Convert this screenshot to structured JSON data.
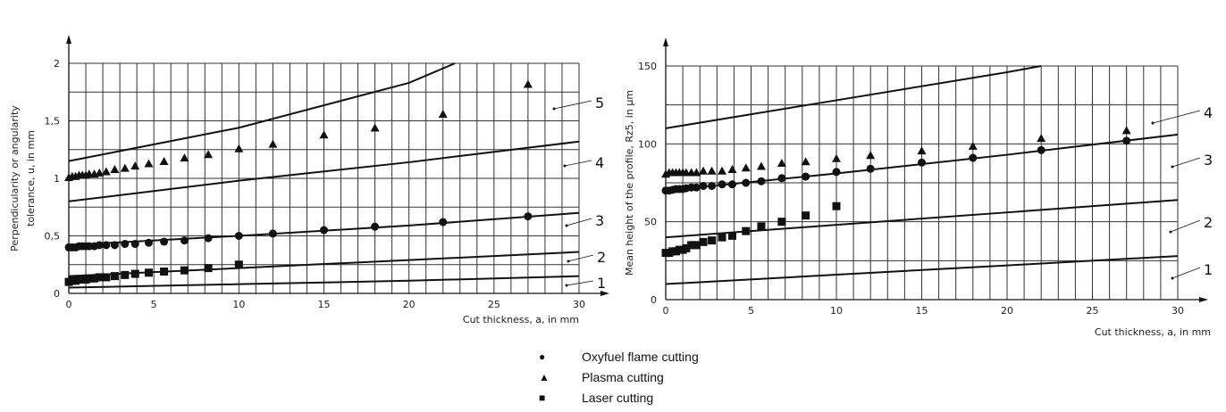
{
  "chart_data": [
    {
      "type": "scatter",
      "title": "",
      "xlabel": "Cut thickness, a, in mm",
      "ylabel": [
        "Perpendicularity or angularity",
        "tolerance, u, in mm"
      ],
      "xlim": [
        0,
        30
      ],
      "ylim": [
        0,
        2
      ],
      "xticks": [
        "0",
        "5",
        "10",
        "15",
        "20",
        "25",
        "30"
      ],
      "yticks": [
        "0",
        "0,5",
        "1",
        "1,5",
        "2"
      ],
      "grid": true,
      "curves": [
        {
          "label": "1",
          "points": [
            [
              0,
              0.05
            ],
            [
              10,
              0.08
            ],
            [
              20,
              0.11
            ],
            [
              30,
              0.15
            ]
          ]
        },
        {
          "label": "2",
          "points": [
            [
              0,
              0.15
            ],
            [
              10,
              0.22
            ],
            [
              20,
              0.29
            ],
            [
              30,
              0.36
            ]
          ]
        },
        {
          "label": "3",
          "points": [
            [
              0,
              0.42
            ],
            [
              10,
              0.5
            ],
            [
              20,
              0.59
            ],
            [
              30,
              0.7
            ]
          ]
        },
        {
          "label": "4",
          "points": [
            [
              0,
              0.8
            ],
            [
              10,
              0.98
            ],
            [
              20,
              1.14
            ],
            [
              30,
              1.32
            ]
          ]
        },
        {
          "label": "5",
          "points": [
            [
              0,
              1.15
            ],
            [
              10,
              1.44
            ],
            [
              20,
              1.83
            ],
            [
              22.7,
              2.0
            ]
          ]
        }
      ],
      "series": [
        {
          "name": "Oxyfuel flame cutting",
          "marker": "circle",
          "x": [
            0,
            0.2,
            0.4,
            0.6,
            0.8,
            1,
            1.2,
            1.5,
            1.8,
            2.2,
            2.7,
            3.3,
            3.9,
            4.7,
            5.6,
            6.8,
            8.2,
            10,
            12,
            15,
            18,
            22,
            27
          ],
          "y": [
            0.4,
            0.4,
            0.4,
            0.41,
            0.41,
            0.41,
            0.41,
            0.41,
            0.42,
            0.42,
            0.42,
            0.43,
            0.43,
            0.44,
            0.45,
            0.46,
            0.48,
            0.5,
            0.52,
            0.55,
            0.58,
            0.62,
            0.67
          ]
        },
        {
          "name": "Plasma cutting",
          "marker": "triangle",
          "x": [
            0,
            0.2,
            0.4,
            0.6,
            0.8,
            1,
            1.2,
            1.5,
            1.8,
            2.2,
            2.7,
            3.3,
            3.9,
            4.7,
            5.6,
            6.8,
            8.2,
            10,
            12,
            15,
            18,
            22,
            27
          ],
          "y": [
            1.0,
            1.01,
            1.01,
            1.02,
            1.02,
            1.02,
            1.03,
            1.03,
            1.04,
            1.05,
            1.07,
            1.08,
            1.1,
            1.12,
            1.14,
            1.17,
            1.2,
            1.25,
            1.29,
            1.37,
            1.43,
            1.55,
            1.81
          ]
        },
        {
          "name": "Laser cutting",
          "marker": "square",
          "x": [
            0,
            0.2,
            0.4,
            0.6,
            0.8,
            1,
            1.2,
            1.5,
            1.8,
            2.2,
            2.7,
            3.3,
            3.9,
            4.7,
            5.6,
            6.8,
            8.2,
            10
          ],
          "y": [
            0.1,
            0.11,
            0.11,
            0.12,
            0.12,
            0.12,
            0.13,
            0.13,
            0.14,
            0.14,
            0.15,
            0.16,
            0.17,
            0.18,
            0.19,
            0.2,
            0.22,
            0.25
          ]
        }
      ]
    },
    {
      "type": "scatter",
      "title": "",
      "xlabel": "Cut thickness, a, in mm",
      "ylabel": [
        "Mean height of the profile, Rz5, in µm"
      ],
      "xlim": [
        0,
        30
      ],
      "ylim": [
        0,
        150
      ],
      "xticks": [
        "0",
        "5",
        "10",
        "15",
        "20",
        "25",
        "30"
      ],
      "yticks": [
        "0",
        "50",
        "100",
        "150"
      ],
      "grid": true,
      "curves": [
        {
          "label": "1",
          "points": [
            [
              0,
              10
            ],
            [
              10,
              16
            ],
            [
              20,
              22
            ],
            [
              30,
              28
            ]
          ]
        },
        {
          "label": "2",
          "points": [
            [
              0,
              40
            ],
            [
              10,
              48
            ],
            [
              20,
              56
            ],
            [
              30,
              64
            ]
          ]
        },
        {
          "label": "3",
          "points": [
            [
              0,
              70
            ],
            [
              10,
              81
            ],
            [
              20,
              93
            ],
            [
              30,
              106
            ]
          ]
        },
        {
          "label": "4",
          "points": [
            [
              0,
              110
            ],
            [
              10,
              128
            ],
            [
              20,
              146
            ],
            [
              22,
              150
            ]
          ]
        }
      ],
      "series": [
        {
          "name": "Oxyfuel flame cutting",
          "marker": "circle",
          "x": [
            0,
            0.2,
            0.4,
            0.6,
            0.8,
            1,
            1.2,
            1.5,
            1.8,
            2.2,
            2.7,
            3.3,
            3.9,
            4.7,
            5.6,
            6.8,
            8.2,
            10,
            12,
            15,
            18,
            22,
            27
          ],
          "y": [
            70,
            70,
            70.5,
            71,
            71,
            71,
            71.5,
            72,
            72,
            73,
            73,
            74,
            74,
            75,
            76,
            78,
            79,
            82,
            84,
            88,
            91,
            96,
            102
          ]
        },
        {
          "name": "Plasma cutting",
          "marker": "triangle",
          "x": [
            0,
            0.2,
            0.4,
            0.6,
            0.8,
            1,
            1.2,
            1.5,
            1.8,
            2.2,
            2.7,
            3.3,
            3.9,
            4.7,
            5.6,
            6.8,
            8.2,
            10,
            12,
            15,
            18,
            22,
            27
          ],
          "y": [
            80,
            81,
            81,
            81,
            81,
            81,
            81,
            81,
            81,
            82,
            82,
            82,
            83,
            84,
            85,
            87,
            88,
            90,
            92,
            95,
            98,
            103,
            108
          ]
        },
        {
          "name": "Laser cutting",
          "marker": "square",
          "x": [
            0,
            0.2,
            0.4,
            0.6,
            0.8,
            1,
            1.2,
            1.5,
            1.8,
            2.2,
            2.7,
            3.3,
            3.9,
            4.7,
            5.6,
            6.8,
            8.2,
            10
          ],
          "y": [
            30,
            30,
            31,
            31,
            32,
            32,
            33,
            35,
            35,
            37,
            38,
            40,
            41,
            44,
            47,
            50,
            54,
            60
          ]
        }
      ]
    }
  ],
  "legend": [
    {
      "label": "Oxyfuel flame cutting",
      "symbol": "●"
    },
    {
      "label": "Plasma cutting",
      "symbol": "▲"
    },
    {
      "label": "Laser cutting",
      "symbol": "■"
    }
  ]
}
